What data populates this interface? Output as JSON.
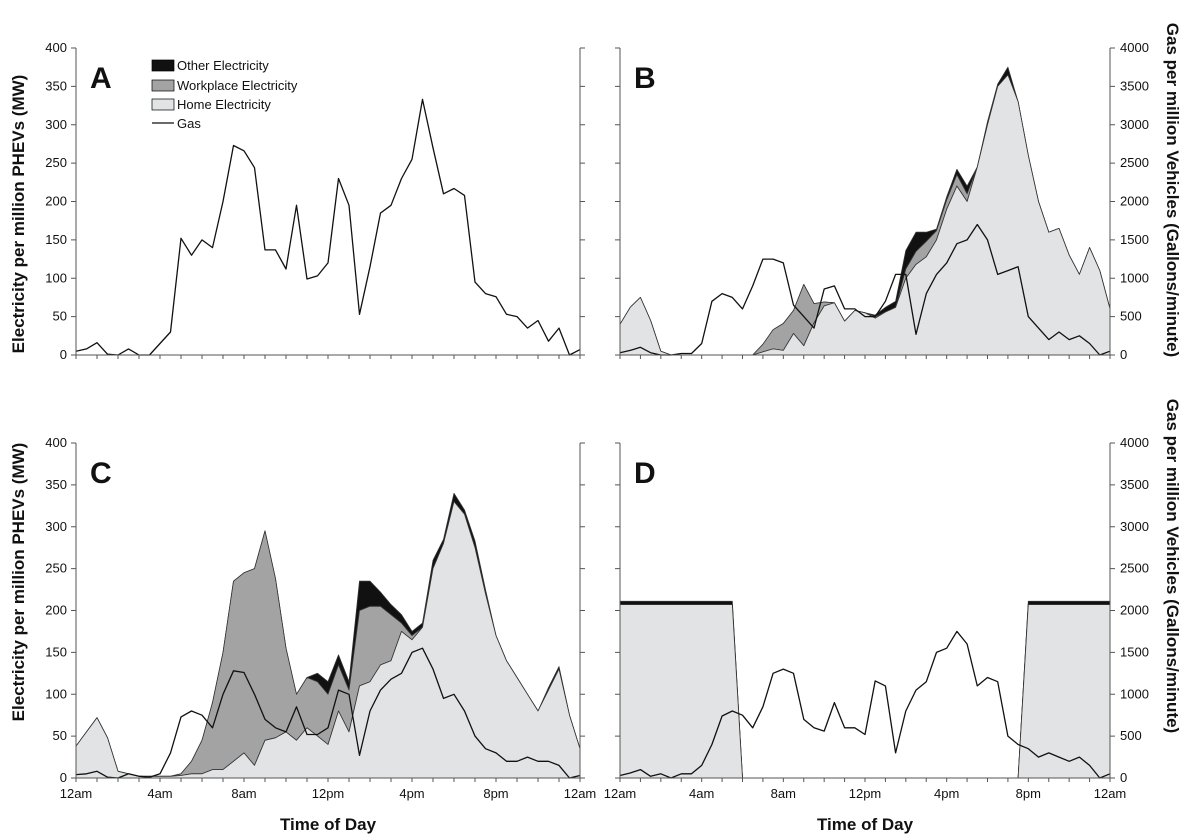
{
  "figure": {
    "left_axis_title": "Electricity per million PHEVs (MW)",
    "right_axis_title": "Gas per million Vehicles (Gallons/minute)",
    "x_axis_title": "Time of Day"
  },
  "legend": [
    {
      "label": "Other Electricity",
      "color": "#111111"
    },
    {
      "label": "Workplace Electricity",
      "color": "#a3a3a3"
    },
    {
      "label": "Home Electricity",
      "color": "#e2e3e4"
    },
    {
      "label": "Gas",
      "color": "#111111"
    }
  ],
  "chart_data": [
    {
      "type": "area",
      "panel": "A",
      "x": [
        0,
        0.5,
        1,
        1.5,
        2,
        2.5,
        3,
        3.5,
        4,
        4.5,
        5,
        5.5,
        6,
        6.5,
        7,
        7.5,
        8,
        8.5,
        9,
        9.5,
        10,
        10.5,
        11,
        11.5,
        12,
        12.5,
        13,
        13.5,
        14,
        14.5,
        15,
        15.5,
        16,
        16.5,
        17,
        17.5,
        18,
        18.5,
        19,
        19.5,
        20,
        20.5,
        21,
        21.5,
        22,
        22.5,
        23,
        23.5,
        24
      ],
      "x_ticks": [
        "12am",
        "4am",
        "8am",
        "12pm",
        "4pm",
        "8pm",
        "12am"
      ],
      "y_left_ticks": [
        0,
        50,
        100,
        150,
        200,
        250,
        300,
        350,
        400
      ],
      "y_right_ticks": [
        0,
        500,
        1000,
        1500,
        2000,
        2500,
        3000,
        3500,
        4000
      ],
      "ylim_left": [
        0,
        400
      ],
      "ylim_right": [
        0,
        4000
      ],
      "series": [
        {
          "name": "Home Electricity",
          "values": [
            0,
            0,
            0,
            0,
            0,
            0,
            0,
            0,
            0,
            0,
            0,
            0,
            0,
            0,
            0,
            0,
            0,
            0,
            0,
            0,
            0,
            0,
            0,
            0,
            0,
            0,
            0,
            0,
            0,
            0,
            0,
            0,
            0,
            0,
            0,
            0,
            0,
            0,
            0,
            0,
            0,
            0,
            0,
            0,
            0,
            0,
            0,
            0,
            0
          ]
        },
        {
          "name": "Workplace Electricity",
          "values": [
            0,
            0,
            0,
            0,
            0,
            0,
            0,
            0,
            0,
            0,
            0,
            0,
            0,
            0,
            0,
            0,
            0,
            0,
            0,
            0,
            0,
            0,
            0,
            0,
            0,
            0,
            0,
            0,
            0,
            0,
            0,
            0,
            0,
            0,
            0,
            0,
            0,
            0,
            0,
            0,
            0,
            0,
            0,
            0,
            0,
            0,
            0,
            0,
            0
          ]
        },
        {
          "name": "Other Electricity",
          "values": [
            0,
            0,
            0,
            0,
            0,
            0,
            0,
            0,
            0,
            0,
            0,
            0,
            0,
            0,
            0,
            0,
            0,
            0,
            0,
            0,
            0,
            0,
            0,
            0,
            0,
            0,
            0,
            0,
            0,
            0,
            0,
            0,
            0,
            0,
            0,
            0,
            0,
            0,
            0,
            0,
            0,
            0,
            0,
            0,
            0,
            0,
            0,
            0,
            0
          ]
        },
        {
          "name": "Gas",
          "axis": "right",
          "values": [
            50,
            80,
            160,
            10,
            0,
            80,
            0,
            0,
            150,
            300,
            1520,
            1300,
            1500,
            1400,
            2000,
            2730,
            2660,
            2440,
            1370,
            1370,
            1120,
            1950,
            990,
            1030,
            1200,
            2300,
            1950,
            530,
            1150,
            1850,
            1950,
            2300,
            2550,
            3330,
            2700,
            2100,
            2170,
            2080,
            950,
            800,
            760,
            530,
            500,
            350,
            450,
            180,
            350,
            0,
            70
          ]
        }
      ]
    },
    {
      "type": "area",
      "panel": "B",
      "x": [
        0,
        0.5,
        1,
        1.5,
        2,
        2.5,
        3,
        3.5,
        4,
        4.5,
        5,
        5.5,
        6,
        6.5,
        7,
        7.5,
        8,
        8.5,
        9,
        9.5,
        10,
        10.5,
        11,
        11.5,
        12,
        12.5,
        13,
        13.5,
        14,
        14.5,
        15,
        15.5,
        16,
        16.5,
        17,
        17.5,
        18,
        18.5,
        19,
        19.5,
        20,
        20.5,
        21,
        21.5,
        22,
        22.5,
        23,
        23.5,
        24
      ],
      "x_ticks": [
        "12am",
        "4am",
        "8am",
        "12pm",
        "4pm",
        "8pm",
        "12am"
      ],
      "y_left_ticks": [
        0,
        50,
        100,
        150,
        200,
        250,
        300,
        350,
        400
      ],
      "y_right_ticks": [
        0,
        500,
        1000,
        1500,
        2000,
        2500,
        3000,
        3500,
        4000
      ],
      "ylim_left": [
        0,
        400
      ],
      "ylim_right": [
        0,
        4000
      ],
      "series": [
        {
          "name": "Home Electricity",
          "values": [
            40,
            62,
            75,
            45,
            5,
            0,
            0,
            0,
            0,
            0,
            0,
            0,
            0,
            0,
            4,
            8,
            6,
            28,
            12,
            42,
            64,
            68,
            44,
            58,
            55,
            48,
            56,
            62,
            100,
            118,
            128,
            150,
            190,
            220,
            200,
            245,
            300,
            350,
            365,
            330,
            260,
            200,
            160,
            165,
            130,
            105,
            140,
            110,
            60
          ]
        },
        {
          "name": "Workplace Electricity",
          "values": [
            0,
            0,
            0,
            0,
            0,
            0,
            0,
            0,
            0,
            0,
            0,
            0,
            0,
            0,
            10,
            25,
            35,
            30,
            80,
            25,
            5,
            0,
            0,
            0,
            0,
            2,
            0,
            0,
            12,
            17,
            20,
            12,
            12,
            15,
            10,
            0,
            0,
            0,
            0,
            0,
            0,
            0,
            0,
            0,
            0,
            0,
            0,
            0,
            0
          ]
        },
        {
          "name": "Other Electricity",
          "values": [
            0,
            0,
            0,
            0,
            0,
            0,
            0,
            0,
            0,
            0,
            0,
            0,
            0,
            0,
            0,
            0,
            0,
            0,
            0,
            0,
            0,
            0,
            0,
            0,
            0,
            2,
            6,
            8,
            24,
            25,
            12,
            2,
            4,
            7,
            10,
            0,
            4,
            3,
            10,
            0,
            0,
            0,
            0,
            0,
            0,
            0,
            0,
            0,
            0
          ]
        },
        {
          "name": "Gas",
          "axis": "right",
          "values": [
            30,
            60,
            100,
            30,
            0,
            0,
            20,
            20,
            150,
            700,
            800,
            750,
            600,
            900,
            1250,
            1250,
            1200,
            650,
            500,
            350,
            860,
            900,
            600,
            600,
            500,
            500,
            700,
            1050,
            1050,
            270,
            800,
            1050,
            1200,
            1450,
            1500,
            1700,
            1500,
            1050,
            1100,
            1150,
            500,
            350,
            200,
            300,
            200,
            250,
            150,
            0,
            50
          ]
        }
      ]
    },
    {
      "type": "area",
      "panel": "C",
      "x": [
        0,
        0.5,
        1,
        1.5,
        2,
        2.5,
        3,
        3.5,
        4,
        4.5,
        5,
        5.5,
        6,
        6.5,
        7,
        7.5,
        8,
        8.5,
        9,
        9.5,
        10,
        10.5,
        11,
        11.5,
        12,
        12.5,
        13,
        13.5,
        14,
        14.5,
        15,
        15.5,
        16,
        16.5,
        17,
        17.5,
        18,
        18.5,
        19,
        19.5,
        20,
        20.5,
        21,
        21.5,
        22,
        22.5,
        23,
        23.5,
        24
      ],
      "x_ticks": [
        "12am",
        "4am",
        "8am",
        "12pm",
        "4pm",
        "8pm",
        "12am"
      ],
      "y_left_ticks": [
        0,
        50,
        100,
        150,
        200,
        250,
        300,
        350,
        400
      ],
      "y_right_ticks": [
        0,
        500,
        1000,
        1500,
        2000,
        2500,
        3000,
        3500,
        4000
      ],
      "ylim_left": [
        0,
        400
      ],
      "ylim_right": [
        0,
        4000
      ],
      "series": [
        {
          "name": "Home Electricity",
          "values": [
            38,
            55,
            72,
            48,
            8,
            5,
            2,
            2,
            2,
            2,
            3,
            5,
            5,
            10,
            10,
            20,
            30,
            15,
            45,
            48,
            55,
            45,
            60,
            50,
            40,
            80,
            55,
            110,
            115,
            135,
            140,
            175,
            165,
            180,
            250,
            280,
            330,
            315,
            275,
            220,
            170,
            140,
            120,
            100,
            80,
            105,
            130,
            75,
            35
          ]
        },
        {
          "name": "Workplace Electricity",
          "values": [
            0,
            0,
            0,
            0,
            0,
            0,
            0,
            0,
            0,
            0,
            2,
            15,
            40,
            80,
            140,
            215,
            215,
            235,
            250,
            190,
            100,
            55,
            60,
            65,
            60,
            55,
            50,
            90,
            90,
            70,
            55,
            10,
            5,
            0,
            0,
            0,
            0,
            0,
            0,
            0,
            0,
            0,
            0,
            0,
            0,
            0,
            0,
            0,
            0
          ]
        },
        {
          "name": "Other Electricity",
          "values": [
            0,
            0,
            0,
            0,
            0,
            0,
            0,
            0,
            0,
            0,
            0,
            0,
            0,
            0,
            0,
            0,
            0,
            0,
            0,
            0,
            0,
            0,
            0,
            10,
            15,
            12,
            10,
            35,
            30,
            17,
            12,
            10,
            5,
            5,
            10,
            5,
            10,
            5,
            8,
            5,
            0,
            0,
            0,
            0,
            0,
            3,
            3,
            0,
            0
          ]
        },
        {
          "name": "Gas",
          "axis": "right",
          "values": [
            40,
            50,
            80,
            10,
            0,
            50,
            20,
            10,
            50,
            300,
            730,
            800,
            750,
            600,
            1000,
            1280,
            1260,
            1000,
            700,
            600,
            550,
            850,
            520,
            520,
            600,
            1050,
            1000,
            270,
            800,
            1050,
            1180,
            1250,
            1500,
            1550,
            1300,
            950,
            1000,
            800,
            500,
            350,
            300,
            200,
            200,
            250,
            200,
            200,
            150,
            0,
            30
          ]
        }
      ]
    },
    {
      "type": "area",
      "panel": "D",
      "x": [
        0,
        0.5,
        1,
        1.5,
        2,
        2.5,
        3,
        3.5,
        4,
        4.5,
        5,
        5.5,
        6,
        6.5,
        7,
        7.5,
        8,
        8.5,
        9,
        9.5,
        10,
        10.5,
        11,
        11.5,
        12,
        12.5,
        13,
        13.5,
        14,
        14.5,
        15,
        15.5,
        16,
        16.5,
        17,
        17.5,
        18,
        18.5,
        19,
        19.5,
        20,
        20.5,
        21,
        21.5,
        22,
        22.5,
        23,
        23.5,
        24
      ],
      "x_ticks": [
        "12am",
        "4am",
        "8am",
        "12pm",
        "4pm",
        "8pm",
        "12am"
      ],
      "y_left_ticks": [
        0,
        50,
        100,
        150,
        200,
        250,
        300,
        350,
        400
      ],
      "y_right_ticks": [
        0,
        500,
        1000,
        1500,
        2000,
        2500,
        3000,
        3500,
        4000
      ],
      "ylim_left": [
        0,
        400
      ],
      "ylim_right": [
        0,
        4000
      ],
      "series": [
        {
          "name": "Home Electricity",
          "values": [
            207,
            207,
            207,
            207,
            207,
            207,
            207,
            207,
            207,
            207,
            207,
            207,
            0,
            0,
            0,
            0,
            0,
            0,
            0,
            0,
            0,
            0,
            0,
            0,
            0,
            0,
            0,
            0,
            0,
            0,
            0,
            0,
            0,
            0,
            0,
            0,
            0,
            0,
            0,
            0,
            207,
            207,
            207,
            207,
            207,
            207,
            207,
            207,
            207
          ]
        },
        {
          "name": "Workplace Electricity",
          "values": [
            0,
            0,
            0,
            0,
            0,
            0,
            0,
            0,
            0,
            0,
            0,
            0,
            0,
            0,
            0,
            0,
            0,
            0,
            0,
            0,
            0,
            0,
            0,
            0,
            0,
            0,
            0,
            0,
            0,
            0,
            0,
            0,
            0,
            0,
            0,
            0,
            0,
            0,
            0,
            0,
            0,
            0,
            0,
            0,
            0,
            0,
            0,
            0,
            0
          ]
        },
        {
          "name": "Other Electricity",
          "values": [
            4,
            4,
            4,
            4,
            4,
            4,
            4,
            4,
            4,
            4,
            4,
            4,
            0,
            0,
            0,
            0,
            0,
            0,
            0,
            0,
            0,
            0,
            0,
            0,
            0,
            0,
            0,
            0,
            0,
            0,
            0,
            0,
            0,
            0,
            0,
            0,
            0,
            0,
            0,
            0,
            4,
            4,
            4,
            4,
            4,
            4,
            4,
            4,
            4
          ]
        },
        {
          "name": "Gas",
          "axis": "right",
          "values": [
            30,
            60,
            100,
            20,
            50,
            0,
            50,
            50,
            150,
            400,
            740,
            800,
            750,
            600,
            850,
            1250,
            1300,
            1250,
            700,
            600,
            560,
            900,
            600,
            600,
            520,
            1160,
            1100,
            300,
            800,
            1050,
            1150,
            1500,
            1550,
            1750,
            1600,
            1100,
            1200,
            1150,
            500,
            400,
            350,
            250,
            300,
            250,
            200,
            250,
            150,
            0,
            50
          ]
        }
      ]
    }
  ]
}
